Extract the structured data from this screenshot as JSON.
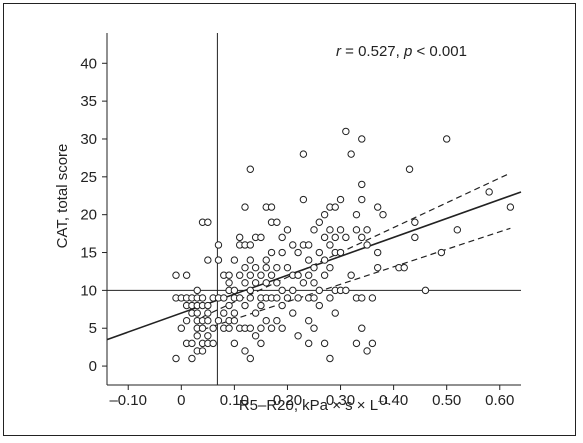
{
  "chart_data": {
    "type": "scatter",
    "xlabel": "R5–R20, kPa × s × L",
    "xlabel_sup": "–1",
    "ylabel": "CAT, total score",
    "xlim": [
      -0.14,
      0.64
    ],
    "ylim": [
      -2.5,
      44
    ],
    "x_ticks": [
      -0.1,
      0,
      0.1,
      0.2,
      0.3,
      0.4,
      0.5,
      0.6
    ],
    "x_tick_labels": [
      "–0.10",
      "0",
      "0.10",
      "0.20",
      "0.30",
      "0.40",
      "0.50",
      "0.60"
    ],
    "y_ticks": [
      0,
      5,
      10,
      15,
      20,
      25,
      30,
      35,
      40
    ],
    "y_tick_labels": [
      "0",
      "5",
      "10",
      "15",
      "20",
      "25",
      "30",
      "35",
      "40"
    ],
    "annotation": {
      "r_symbol": "r",
      "r_text": " = 0.527, ",
      "p_symbol": "p",
      "p_text": " < 0.001"
    },
    "reference_lines": {
      "x": 0.068,
      "y": 10
    },
    "regression": {
      "x": [
        -0.14,
        0.64
      ],
      "y": [
        3.5,
        23
      ]
    },
    "ci_upper": {
      "x": [
        0.04,
        0.62
      ],
      "y": [
        6.5,
        25.5
      ]
    },
    "ci_lower": {
      "x": [
        0.04,
        0.62
      ],
      "y": [
        4.8,
        18.2
      ]
    },
    "grid": false,
    "series": [
      {
        "points": [
          [
            -0.01,
            1
          ],
          [
            -0.01,
            9
          ],
          [
            -0.01,
            12
          ],
          [
            0.0,
            5
          ],
          [
            0.0,
            9
          ],
          [
            0.01,
            3
          ],
          [
            0.01,
            6
          ],
          [
            0.01,
            8
          ],
          [
            0.01,
            9
          ],
          [
            0.01,
            12
          ],
          [
            0.02,
            1
          ],
          [
            0.02,
            3
          ],
          [
            0.02,
            7
          ],
          [
            0.02,
            8
          ],
          [
            0.02,
            9
          ],
          [
            0.03,
            2
          ],
          [
            0.03,
            4
          ],
          [
            0.03,
            5
          ],
          [
            0.03,
            6
          ],
          [
            0.03,
            7
          ],
          [
            0.03,
            8
          ],
          [
            0.03,
            9
          ],
          [
            0.03,
            10
          ],
          [
            0.04,
            2
          ],
          [
            0.04,
            3
          ],
          [
            0.04,
            5
          ],
          [
            0.04,
            6
          ],
          [
            0.04,
            8
          ],
          [
            0.04,
            9
          ],
          [
            0.04,
            19
          ],
          [
            0.05,
            3
          ],
          [
            0.05,
            4
          ],
          [
            0.05,
            6
          ],
          [
            0.05,
            7
          ],
          [
            0.05,
            8
          ],
          [
            0.05,
            14
          ],
          [
            0.05,
            19
          ],
          [
            0.06,
            3
          ],
          [
            0.06,
            5
          ],
          [
            0.06,
            9
          ],
          [
            0.07,
            6
          ],
          [
            0.07,
            9
          ],
          [
            0.07,
            14
          ],
          [
            0.07,
            16
          ],
          [
            0.08,
            5
          ],
          [
            0.08,
            7
          ],
          [
            0.08,
            9
          ],
          [
            0.08,
            12
          ],
          [
            0.09,
            5
          ],
          [
            0.09,
            6
          ],
          [
            0.09,
            8
          ],
          [
            0.09,
            10
          ],
          [
            0.09,
            11
          ],
          [
            0.09,
            12
          ],
          [
            0.1,
            3
          ],
          [
            0.1,
            6
          ],
          [
            0.1,
            7
          ],
          [
            0.1,
            9
          ],
          [
            0.1,
            10
          ],
          [
            0.1,
            14
          ],
          [
            0.11,
            5
          ],
          [
            0.11,
            9
          ],
          [
            0.11,
            12
          ],
          [
            0.11,
            16
          ],
          [
            0.11,
            17
          ],
          [
            0.12,
            2
          ],
          [
            0.12,
            5
          ],
          [
            0.12,
            8
          ],
          [
            0.12,
            11
          ],
          [
            0.12,
            13
          ],
          [
            0.12,
            16
          ],
          [
            0.12,
            21
          ],
          [
            0.13,
            1
          ],
          [
            0.13,
            5
          ],
          [
            0.13,
            9
          ],
          [
            0.13,
            10
          ],
          [
            0.13,
            12
          ],
          [
            0.13,
            14
          ],
          [
            0.13,
            16
          ],
          [
            0.13,
            26
          ],
          [
            0.14,
            4
          ],
          [
            0.14,
            7
          ],
          [
            0.14,
            11
          ],
          [
            0.14,
            13
          ],
          [
            0.14,
            17
          ],
          [
            0.15,
            3
          ],
          [
            0.15,
            5
          ],
          [
            0.15,
            8
          ],
          [
            0.15,
            9
          ],
          [
            0.15,
            12
          ],
          [
            0.15,
            17
          ],
          [
            0.16,
            6
          ],
          [
            0.16,
            9
          ],
          [
            0.16,
            11
          ],
          [
            0.16,
            13
          ],
          [
            0.16,
            14
          ],
          [
            0.16,
            21
          ],
          [
            0.17,
            5
          ],
          [
            0.17,
            9
          ],
          [
            0.17,
            12
          ],
          [
            0.17,
            15
          ],
          [
            0.17,
            19
          ],
          [
            0.17,
            21
          ],
          [
            0.18,
            6
          ],
          [
            0.18,
            9
          ],
          [
            0.18,
            11
          ],
          [
            0.18,
            13
          ],
          [
            0.18,
            19
          ],
          [
            0.19,
            5
          ],
          [
            0.19,
            8
          ],
          [
            0.19,
            10
          ],
          [
            0.19,
            15
          ],
          [
            0.19,
            17
          ],
          [
            0.2,
            9
          ],
          [
            0.2,
            13
          ],
          [
            0.2,
            18
          ],
          [
            0.21,
            7
          ],
          [
            0.21,
            10
          ],
          [
            0.21,
            12
          ],
          [
            0.21,
            16
          ],
          [
            0.22,
            4
          ],
          [
            0.22,
            9
          ],
          [
            0.22,
            12
          ],
          [
            0.22,
            15
          ],
          [
            0.23,
            11
          ],
          [
            0.23,
            16
          ],
          [
            0.23,
            22
          ],
          [
            0.23,
            28
          ],
          [
            0.24,
            3
          ],
          [
            0.24,
            6
          ],
          [
            0.24,
            9
          ],
          [
            0.24,
            12
          ],
          [
            0.24,
            14
          ],
          [
            0.24,
            16
          ],
          [
            0.25,
            5
          ],
          [
            0.25,
            9
          ],
          [
            0.25,
            11
          ],
          [
            0.25,
            13
          ],
          [
            0.25,
            18
          ],
          [
            0.26,
            8
          ],
          [
            0.26,
            10
          ],
          [
            0.26,
            15
          ],
          [
            0.26,
            19
          ],
          [
            0.27,
            3
          ],
          [
            0.27,
            12
          ],
          [
            0.27,
            14
          ],
          [
            0.27,
            17
          ],
          [
            0.27,
            20
          ],
          [
            0.28,
            1
          ],
          [
            0.28,
            9
          ],
          [
            0.28,
            13
          ],
          [
            0.28,
            16
          ],
          [
            0.28,
            18
          ],
          [
            0.28,
            21
          ],
          [
            0.29,
            7
          ],
          [
            0.29,
            10
          ],
          [
            0.29,
            15
          ],
          [
            0.29,
            17
          ],
          [
            0.29,
            21
          ],
          [
            0.3,
            10
          ],
          [
            0.3,
            15
          ],
          [
            0.3,
            18
          ],
          [
            0.3,
            22
          ],
          [
            0.31,
            10
          ],
          [
            0.31,
            17
          ],
          [
            0.31,
            31
          ],
          [
            0.32,
            12
          ],
          [
            0.32,
            28
          ],
          [
            0.33,
            3
          ],
          [
            0.33,
            9
          ],
          [
            0.33,
            18
          ],
          [
            0.33,
            20
          ],
          [
            0.34,
            5
          ],
          [
            0.34,
            9
          ],
          [
            0.34,
            17
          ],
          [
            0.34,
            22
          ],
          [
            0.34,
            24
          ],
          [
            0.34,
            30
          ],
          [
            0.35,
            2
          ],
          [
            0.35,
            16
          ],
          [
            0.35,
            18
          ],
          [
            0.36,
            3
          ],
          [
            0.36,
            9
          ],
          [
            0.37,
            13
          ],
          [
            0.37,
            15
          ],
          [
            0.37,
            21
          ],
          [
            0.38,
            20
          ],
          [
            0.41,
            13
          ],
          [
            0.42,
            13
          ],
          [
            0.43,
            26
          ],
          [
            0.44,
            17
          ],
          [
            0.44,
            19
          ],
          [
            0.46,
            10
          ],
          [
            0.49,
            15
          ],
          [
            0.5,
            30
          ],
          [
            0.52,
            18
          ],
          [
            0.58,
            23
          ],
          [
            0.62,
            21
          ]
        ]
      }
    ]
  }
}
